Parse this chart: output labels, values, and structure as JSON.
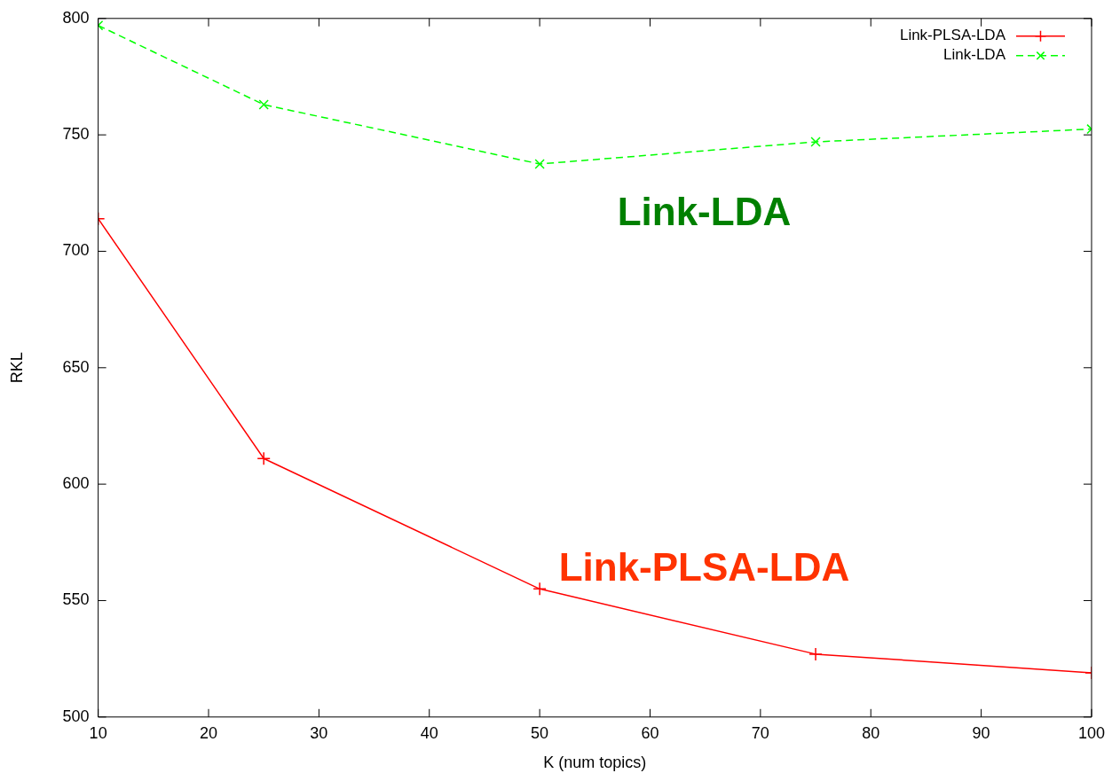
{
  "chart_data": {
    "type": "line",
    "xlabel": "K (num topics)",
    "ylabel": "RKL",
    "x": [
      10,
      25,
      50,
      75,
      100
    ],
    "series": [
      {
        "name": "Link-PLSA-LDA",
        "color": "#ff0000",
        "marker": "cross",
        "line_style": "solid",
        "values": [
          714,
          611,
          555,
          527,
          519
        ]
      },
      {
        "name": "Link-LDA",
        "color": "#00ff00",
        "marker": "cross",
        "line_style": "dashed",
        "values": [
          797,
          763,
          737.5,
          747,
          752.5
        ]
      }
    ],
    "xlim": [
      10,
      100
    ],
    "xticks": [
      10,
      20,
      30,
      40,
      50,
      60,
      70,
      80,
      90,
      100
    ],
    "ylim": [
      500,
      800
    ],
    "yticks": [
      500,
      550,
      600,
      650,
      700,
      750,
      800
    ],
    "grid": false,
    "legend": "top right",
    "annotations": [
      "Link-LDA",
      "Link-PLSA-LDA"
    ]
  }
}
